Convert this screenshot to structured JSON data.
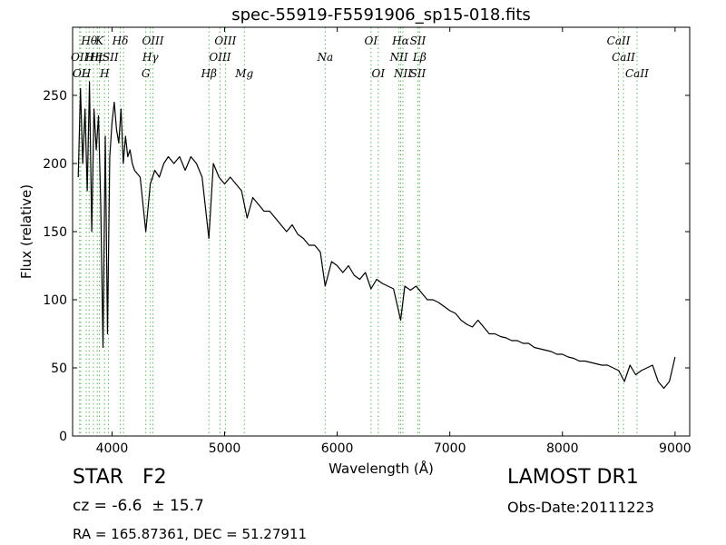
{
  "chart_data": {
    "type": "line",
    "title": "spec-55919-F5591906_sp15-018.fits",
    "xlabel": "Wavelength (Å)",
    "ylabel": "Flux (relative)",
    "xlim": [
      3650,
      9130
    ],
    "ylim": [
      0,
      300
    ],
    "xticks": [
      4000,
      5000,
      6000,
      7000,
      8000,
      9000
    ],
    "yticks": [
      0,
      50,
      100,
      150,
      200,
      250
    ],
    "grid": false,
    "series": [
      {
        "x": [
          3700,
          3720,
          3740,
          3760,
          3780,
          3800,
          3820,
          3840,
          3860,
          3880,
          3900,
          3920,
          3940,
          3960,
          3980,
          4000,
          4020,
          4040,
          4060,
          4080,
          4100,
          4120,
          4140,
          4160,
          4180,
          4200,
          4250,
          4300,
          4340,
          4380,
          4420,
          4460,
          4500,
          4550,
          4600,
          4650,
          4700,
          4750,
          4800,
          4860,
          4900,
          4950,
          5000,
          5050,
          5100,
          5150,
          5200,
          5250,
          5300,
          5350,
          5400,
          5450,
          5500,
          5550,
          5600,
          5650,
          5700,
          5750,
          5800,
          5850,
          5893,
          5950,
          6000,
          6050,
          6100,
          6150,
          6200,
          6250,
          6300,
          6350,
          6400,
          6450,
          6500,
          6563,
          6600,
          6650,
          6700,
          6750,
          6800,
          6850,
          6900,
          6950,
          7000,
          7050,
          7100,
          7150,
          7200,
          7250,
          7300,
          7350,
          7400,
          7450,
          7500,
          7550,
          7600,
          7650,
          7700,
          7750,
          7800,
          7850,
          7900,
          7950,
          8000,
          8050,
          8100,
          8150,
          8200,
          8250,
          8300,
          8350,
          8400,
          8450,
          8500,
          8550,
          8600,
          8650,
          8700,
          8750,
          8800,
          8850,
          8900,
          8950,
          9000
        ],
        "y": [
          190,
          255,
          200,
          240,
          180,
          260,
          150,
          240,
          210,
          235,
          170,
          65,
          220,
          75,
          205,
          230,
          245,
          225,
          215,
          240,
          200,
          220,
          205,
          210,
          200,
          195,
          190,
          150,
          185,
          195,
          190,
          200,
          205,
          200,
          205,
          195,
          205,
          200,
          190,
          145,
          200,
          190,
          185,
          190,
          185,
          180,
          160,
          175,
          170,
          165,
          165,
          160,
          155,
          150,
          155,
          148,
          145,
          140,
          140,
          135,
          110,
          128,
          125,
          120,
          125,
          118,
          115,
          120,
          108,
          115,
          112,
          110,
          108,
          85,
          110,
          107,
          110,
          105,
          100,
          100,
          98,
          95,
          92,
          90,
          85,
          82,
          80,
          85,
          80,
          75,
          75,
          73,
          72,
          70,
          70,
          68,
          68,
          65,
          64,
          63,
          62,
          60,
          60,
          58,
          57,
          55,
          55,
          54,
          53,
          52,
          52,
          50,
          48,
          40,
          52,
          45,
          48,
          50,
          52,
          40,
          35,
          40,
          58
        ]
      }
    ],
    "lines": [
      {
        "wavelength": 3712,
        "label": "OII",
        "row": 2
      },
      {
        "wavelength": 3722,
        "label": "OL",
        "row": 3
      },
      {
        "wavelength": 3771,
        "label": "H",
        "row": 3
      },
      {
        "wavelength": 3797,
        "label": "Hθ",
        "row": 1
      },
      {
        "wavelength": 3835,
        "label": "Hη",
        "row": 2
      },
      {
        "wavelength": 3869,
        "label": "Hc",
        "row": 2
      },
      {
        "wavelength": 3889,
        "label": "K",
        "row": 1
      },
      {
        "wavelength": 3934,
        "label": "H",
        "row": 3
      },
      {
        "wavelength": 3968,
        "label": "ISII",
        "row": 2
      },
      {
        "wavelength": 4073,
        "label": "Hδ",
        "row": 1
      },
      {
        "wavelength": 4102,
        "label": "",
        "row": 0
      },
      {
        "wavelength": 4300,
        "label": "G",
        "row": 3
      },
      {
        "wavelength": 4341,
        "label": "Hγ",
        "row": 2
      },
      {
        "wavelength": 4363,
        "label": "OIII",
        "row": 1
      },
      {
        "wavelength": 4861,
        "label": "Hβ",
        "row": 3
      },
      {
        "wavelength": 4959,
        "label": "OIII",
        "row": 2
      },
      {
        "wavelength": 5007,
        "label": "OIII",
        "row": 1
      },
      {
        "wavelength": 5175,
        "label": "Mg",
        "row": 3
      },
      {
        "wavelength": 5893,
        "label": "Na",
        "row": 2
      },
      {
        "wavelength": 6300,
        "label": "OI",
        "row": 1
      },
      {
        "wavelength": 6364,
        "label": "OI",
        "row": 3
      },
      {
        "wavelength": 6548,
        "label": "NII",
        "row": 2
      },
      {
        "wavelength": 6563,
        "label": "Hα",
        "row": 1
      },
      {
        "wavelength": 6583,
        "label": "NII",
        "row": 3
      },
      {
        "wavelength": 6716,
        "label": "SII",
        "row": 1
      },
      {
        "wavelength": 6716,
        "label": "SII",
        "row": 3
      },
      {
        "wavelength": 6731,
        "label": "Lβ",
        "row": 2
      },
      {
        "wavelength": 8498,
        "label": "CaII",
        "row": 1
      },
      {
        "wavelength": 8542,
        "label": "CaII",
        "row": 2
      },
      {
        "wavelength": 8662,
        "label": "CaII",
        "row": 3
      }
    ]
  },
  "info": {
    "class_label": "STAR",
    "subclass": "F2",
    "survey": "LAMOST DR1",
    "cz": "cz = -6.6  ± 15.7",
    "obs_date": "Obs-Date:20111223",
    "coords": "RA = 165.87361, DEC = 51.27911"
  }
}
